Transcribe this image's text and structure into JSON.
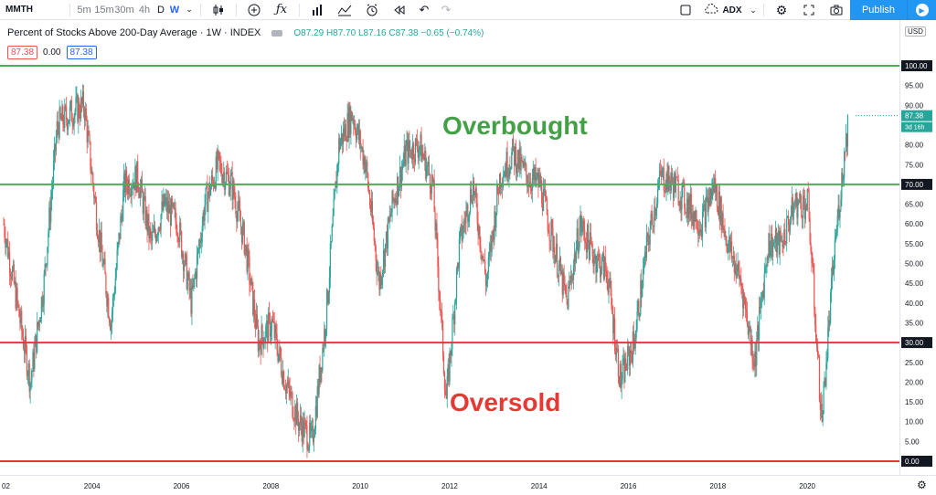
{
  "toolbar": {
    "symbol": "MMTH",
    "intervals": [
      {
        "label": "5m",
        "active": false
      },
      {
        "label": "15m",
        "active": false
      },
      {
        "label": "30m",
        "active": false
      },
      {
        "label": "4h",
        "active": false
      },
      {
        "label": "D",
        "active": false
      },
      {
        "label": "W",
        "active": true
      }
    ],
    "compare_label": "ADX",
    "publish_label": "Publish"
  },
  "legend": {
    "title": "Percent of Stocks Above 200-Day Average · 1W · INDEX",
    "ohlc": "O87.29 H87.70 L87.16 C87.38 −0.65 (−0.74%)",
    "value_a": "87.38",
    "value_b": "0.00",
    "value_c": "87.38"
  },
  "colors": {
    "up": "#26a69a",
    "down": "#ef5350",
    "overbought_line": "#4caf50",
    "oversold_line": "#e53935",
    "overbought_text": "#43a047",
    "oversold_text": "#e53935",
    "publish": "#2196f3"
  },
  "chart_data": {
    "type": "candlestick",
    "title": "Percent of Stocks Above 200-Day Average",
    "interval": "1W",
    "exchange": "INDEX",
    "currency_label": "USD",
    "y_ticks": [
      "100.00",
      "95.00",
      "90.00",
      "85.00",
      "80.00",
      "75.00",
      "70.00",
      "65.00",
      "60.00",
      "55.00",
      "50.00",
      "45.00",
      "40.00",
      "35.00",
      "30.00",
      "25.00",
      "20.00",
      "15.00",
      "10.00",
      "5.00",
      "0.00"
    ],
    "x_ticks": [
      "02",
      "2004",
      "2006",
      "2008",
      "2010",
      "2012",
      "2014",
      "2016",
      "2018",
      "2020"
    ],
    "ylim": [
      0,
      106
    ],
    "last_price_label": "87.38",
    "countdown_label": "3d 16h",
    "horizontal_lines": [
      {
        "value": 100,
        "label": "100.00",
        "color": "#4caf50"
      },
      {
        "value": 70,
        "label": "70.00",
        "color": "#4caf50"
      },
      {
        "value": 30,
        "label": "30.00",
        "color": "#e53935"
      },
      {
        "value": 0,
        "label": "0.00",
        "color": "#e53935"
      }
    ],
    "annotations": [
      {
        "text": "Overbought",
        "at_year": 2006.5,
        "at_value": 85,
        "color": "#43a047"
      },
      {
        "text": "Oversold",
        "at_year": 2006.8,
        "at_value": 15,
        "color": "#e53935"
      }
    ],
    "series": [
      {
        "x_years": [
          2002.0,
          2002.3,
          2002.6,
          2002.9,
          2003.2,
          2003.5,
          2003.8,
          2004.1,
          2004.4,
          2004.7,
          2005.0,
          2005.3,
          2005.6,
          2005.9,
          2006.2,
          2006.5,
          2006.8,
          2007.1,
          2007.4,
          2007.7,
          2008.0,
          2008.3,
          2008.6,
          2008.9,
          2009.2,
          2009.5,
          2009.8,
          2010.1,
          2010.4,
          2010.7,
          2011.0,
          2011.3,
          2011.6,
          2011.9,
          2012.2,
          2012.5,
          2012.8,
          2013.1,
          2013.4,
          2013.7,
          2014.0,
          2014.3,
          2014.6,
          2014.9,
          2015.2,
          2015.5,
          2015.8,
          2016.1,
          2016.4,
          2016.7,
          2017.0,
          2017.3,
          2017.6,
          2017.9,
          2018.2,
          2018.5,
          2018.8,
          2019.1,
          2019.4,
          2019.7,
          2020.0,
          2020.3,
          2020.6,
          2020.9
        ],
        "values": [
          60,
          40,
          20,
          45,
          85,
          88,
          90,
          60,
          35,
          70,
          72,
          55,
          65,
          60,
          40,
          65,
          75,
          70,
          55,
          30,
          35,
          20,
          10,
          5,
          35,
          80,
          88,
          75,
          45,
          65,
          78,
          80,
          70,
          15,
          55,
          70,
          45,
          72,
          78,
          72,
          70,
          55,
          40,
          60,
          52,
          48,
          20,
          30,
          55,
          72,
          70,
          65,
          60,
          70,
          55,
          45,
          25,
          55,
          55,
          65,
          65,
          10,
          55,
          87
        ]
      }
    ]
  }
}
